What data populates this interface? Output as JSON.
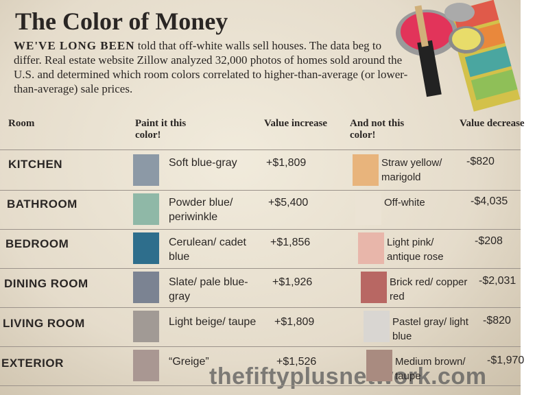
{
  "header": {
    "title": "The Color of Money",
    "lead": "WE'VE LONG BEEN",
    "intro": "told that off-white walls sell houses. The data beg to differ. Real estate website Zillow analyzed 32,000 photos of homes sold around the U.S. and determined which room colors correlated to higher-than-average (or lower-than-average) sale prices."
  },
  "table": {
    "columns": [
      "Room",
      "Paint it this color!",
      "Value increase",
      "And not this color!",
      "Value decrease"
    ],
    "rows": [
      {
        "room": "KITCHEN",
        "paint": "Soft blue-gray",
        "paint_color": "#8c99a6",
        "increase": "+$1,809",
        "avoid": "Straw yellow/ marigold",
        "avoid_color": "#e8b47c",
        "decrease": "-$820"
      },
      {
        "room": "BATHROOM",
        "paint": "Powder blue/ periwinkle",
        "paint_color": "#8fb8a7",
        "increase": "+$5,400",
        "avoid": "Off-white",
        "avoid_color": "#ebe3d4",
        "decrease": "-$4,035"
      },
      {
        "room": "BEDROOM",
        "paint": "Cerulean/ cadet blue",
        "paint_color": "#2e6e8c",
        "increase": "+$1,856",
        "avoid": "Light pink/ antique rose",
        "avoid_color": "#e8b6aa",
        "decrease": "-$208"
      },
      {
        "room": "DINING ROOM",
        "paint": "Slate/ pale blue-gray",
        "paint_color": "#7b8392",
        "increase": "+$1,926",
        "avoid": "Brick red/ copper red",
        "avoid_color": "#b86763",
        "decrease": "-$2,031"
      },
      {
        "room": "LIVING ROOM",
        "paint": "Light beige/ taupe",
        "paint_color": "#a19a95",
        "increase": "+$1,809",
        "avoid": "Pastel gray/ light blue",
        "avoid_color": "#d9d6d2",
        "decrease": "-$820"
      },
      {
        "room": "EXTERIOR",
        "paint": "“Greige”",
        "paint_color": "#a99792",
        "increase": "+$1,526",
        "avoid": "Medium brown/ taupe",
        "avoid_color": "#a98b80",
        "decrease": "-$1,970"
      }
    ]
  },
  "watermark": "thefiftyplusnetwork.com"
}
